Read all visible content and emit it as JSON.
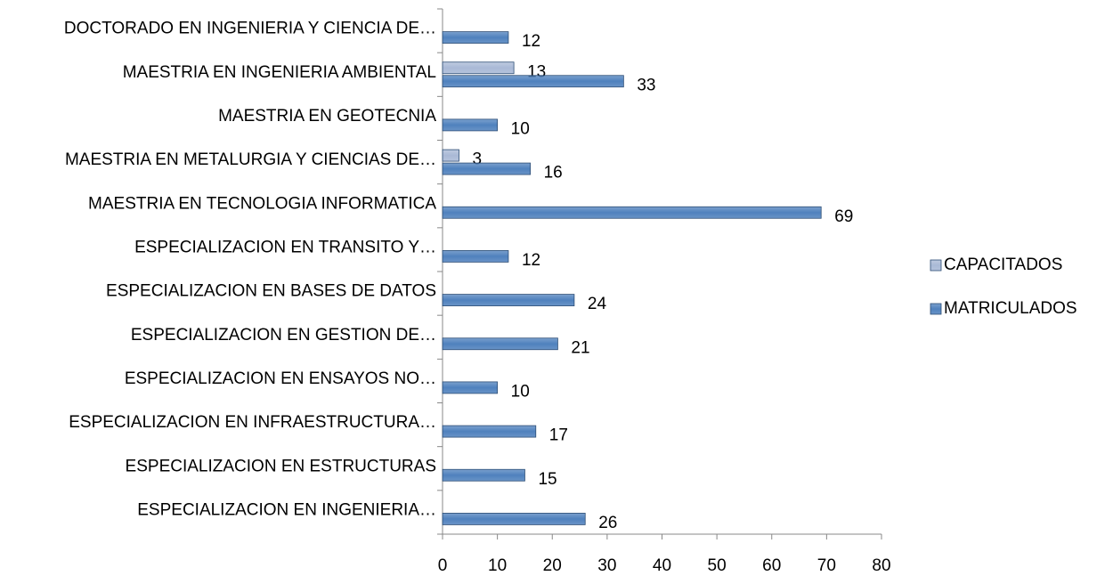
{
  "chart_data": {
    "type": "bar",
    "orientation": "horizontal",
    "categories": [
      "DOCTORADO EN INGENIERIA Y CIENCIA DE…",
      "MAESTRIA EN INGENIERIA AMBIENTAL",
      "MAESTRIA EN GEOTECNIA",
      "MAESTRIA EN METALURGIA Y CIENCIAS DE…",
      "MAESTRIA EN TECNOLOGIA INFORMATICA",
      "ESPECIALIZACION EN TRANSITO Y…",
      "ESPECIALIZACION EN BASES DE DATOS",
      "ESPECIALIZACION EN GESTION DE…",
      "ESPECIALIZACION EN ENSAYOS NO…",
      "ESPECIALIZACION EN INFRAESTRUCTURA…",
      "ESPECIALIZACION EN ESTRUCTURAS",
      "ESPECIALIZACION EN INGENIERIA…"
    ],
    "series": [
      {
        "name": "CAPACITADOS",
        "color": "#a9b9d6",
        "values": [
          null,
          13,
          null,
          3,
          null,
          null,
          null,
          null,
          null,
          null,
          null,
          null
        ]
      },
      {
        "name": "MATRICULADOS",
        "color": "#4f81bd",
        "values": [
          12,
          33,
          10,
          16,
          69,
          12,
          24,
          21,
          10,
          17,
          15,
          26
        ]
      }
    ],
    "xlim": [
      0,
      80
    ],
    "xticks": [
      0,
      10,
      20,
      30,
      40,
      50,
      60,
      70,
      80
    ],
    "legend": "right"
  }
}
